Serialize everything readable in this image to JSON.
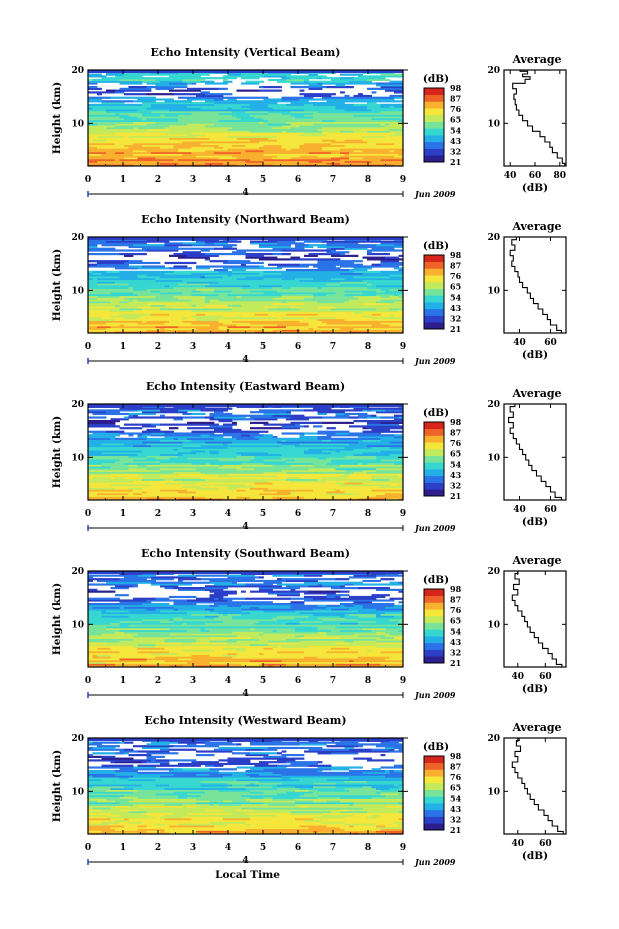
{
  "figure": {
    "xlabel": "Local Time",
    "date_label": "Jun 2009",
    "day_marker": "4",
    "colorbar_unit": "(dB)",
    "colorbar_ticks": [
      "98",
      "87",
      "76",
      "65",
      "54",
      "43",
      "32",
      "21"
    ],
    "colorbar_colors": [
      "#2c1e8c",
      "#2b3fc8",
      "#2a74e8",
      "#22b0e6",
      "#37d7d1",
      "#77e49a",
      "#c3ea5b",
      "#f4e63a",
      "#f9b02f",
      "#f06328",
      "#d6261c"
    ]
  },
  "chart_data": [
    {
      "type": "heatmap",
      "title": "Echo Intensity (Vertical Beam)",
      "ylabel": "Height (km)",
      "x_ticks": [
        0,
        1,
        2,
        3,
        4,
        5,
        6,
        7,
        8,
        9
      ],
      "y_ticks": [
        10,
        20
      ],
      "xlim": [
        0,
        9
      ],
      "ylim": [
        2,
        20
      ],
      "color_range": [
        21,
        98
      ],
      "profile_levels_dB": [
        [
          2,
          85
        ],
        [
          4,
          80
        ],
        [
          6,
          76
        ],
        [
          8,
          70
        ],
        [
          10,
          62
        ],
        [
          12,
          54
        ],
        [
          14,
          44
        ],
        [
          15,
          38
        ],
        [
          16,
          30
        ],
        [
          17,
          34
        ],
        [
          18,
          52
        ],
        [
          19,
          48
        ]
      ],
      "average": {
        "title": "Average",
        "xlabel": "(dB)",
        "x_ticks": [
          40,
          60,
          80
        ],
        "xlim": [
          35,
          85
        ],
        "ylim": [
          2,
          20
        ],
        "profile": [
          [
            2,
            84
          ],
          [
            3,
            82
          ],
          [
            4,
            78
          ],
          [
            5,
            74
          ],
          [
            6,
            72
          ],
          [
            7,
            68
          ],
          [
            8,
            64
          ],
          [
            9,
            58
          ],
          [
            10,
            54
          ],
          [
            11,
            50
          ],
          [
            12,
            47
          ],
          [
            13,
            45
          ],
          [
            14,
            44
          ],
          [
            15,
            43
          ],
          [
            16,
            45
          ],
          [
            17,
            42
          ],
          [
            18,
            52
          ],
          [
            18.5,
            56
          ],
          [
            19,
            50
          ],
          [
            19.5,
            54
          ],
          [
            20,
            48
          ]
        ]
      }
    },
    {
      "type": "heatmap",
      "title": "Echo Intensity (Northward Beam)",
      "ylabel": "Height (km)",
      "x_ticks": [
        0,
        1,
        2,
        3,
        4,
        5,
        6,
        7,
        8,
        9
      ],
      "y_ticks": [
        10,
        20
      ],
      "xlim": [
        0,
        9
      ],
      "ylim": [
        2,
        20
      ],
      "color_range": [
        21,
        98
      ],
      "profile_levels_dB": [
        [
          2,
          80
        ],
        [
          4,
          76
        ],
        [
          6,
          70
        ],
        [
          8,
          64
        ],
        [
          10,
          56
        ],
        [
          12,
          50
        ],
        [
          14,
          42
        ],
        [
          15,
          36
        ],
        [
          16,
          28
        ],
        [
          17,
          34
        ],
        [
          18,
          40
        ],
        [
          19,
          36
        ]
      ],
      "average": {
        "title": "Average",
        "xlabel": "(dB)",
        "x_ticks": [
          40,
          60
        ],
        "xlim": [
          30,
          70
        ],
        "ylim": [
          2,
          20
        ],
        "profile": [
          [
            2,
            67
          ],
          [
            3,
            64
          ],
          [
            4,
            60
          ],
          [
            5,
            58
          ],
          [
            6,
            55
          ],
          [
            7,
            52
          ],
          [
            8,
            49
          ],
          [
            9,
            47
          ],
          [
            10,
            45
          ],
          [
            11,
            42
          ],
          [
            12,
            40
          ],
          [
            13,
            39
          ],
          [
            14,
            37
          ],
          [
            15,
            35
          ],
          [
            16,
            36
          ],
          [
            17,
            34
          ],
          [
            18,
            37
          ],
          [
            19,
            35
          ],
          [
            20,
            38
          ]
        ]
      }
    },
    {
      "type": "heatmap",
      "title": "Echo Intensity (Eastward Beam)",
      "ylabel": "Height (km)",
      "x_ticks": [
        0,
        1,
        2,
        3,
        4,
        5,
        6,
        7,
        8,
        9
      ],
      "y_ticks": [
        10,
        20
      ],
      "xlim": [
        0,
        9
      ],
      "ylim": [
        2,
        20
      ],
      "color_range": [
        21,
        98
      ],
      "profile_levels_dB": [
        [
          2,
          78
        ],
        [
          4,
          74
        ],
        [
          6,
          68
        ],
        [
          8,
          62
        ],
        [
          10,
          55
        ],
        [
          12,
          49
        ],
        [
          14,
          41
        ],
        [
          15,
          35
        ],
        [
          16,
          28
        ],
        [
          17,
          33
        ],
        [
          18,
          38
        ],
        [
          19,
          35
        ]
      ],
      "average": {
        "title": "Average",
        "xlabel": "(dB)",
        "x_ticks": [
          40,
          60
        ],
        "xlim": [
          30,
          70
        ],
        "ylim": [
          2,
          20
        ],
        "profile": [
          [
            2,
            67
          ],
          [
            3,
            63
          ],
          [
            4,
            60
          ],
          [
            5,
            57
          ],
          [
            6,
            54
          ],
          [
            7,
            51
          ],
          [
            8,
            48
          ],
          [
            9,
            46
          ],
          [
            10,
            44
          ],
          [
            11,
            42
          ],
          [
            12,
            40
          ],
          [
            13,
            38
          ],
          [
            14,
            36
          ],
          [
            15,
            34
          ],
          [
            16,
            36
          ],
          [
            17,
            33
          ],
          [
            18,
            36
          ],
          [
            19,
            34
          ],
          [
            20,
            37
          ]
        ]
      }
    },
    {
      "type": "heatmap",
      "title": "Echo Intensity (Southward Beam)",
      "ylabel": "Height (km)",
      "x_ticks": [
        0,
        1,
        2,
        3,
        4,
        5,
        6,
        7,
        8,
        9
      ],
      "y_ticks": [
        10,
        20
      ],
      "xlim": [
        0,
        9
      ],
      "ylim": [
        2,
        20
      ],
      "color_range": [
        21,
        98
      ],
      "profile_levels_dB": [
        [
          2,
          79
        ],
        [
          4,
          75
        ],
        [
          6,
          69
        ],
        [
          8,
          62
        ],
        [
          10,
          56
        ],
        [
          12,
          50
        ],
        [
          14,
          42
        ],
        [
          15,
          36
        ],
        [
          16,
          30
        ],
        [
          17,
          35
        ],
        [
          18,
          42
        ],
        [
          19,
          38
        ]
      ],
      "average": {
        "title": "Average",
        "xlabel": "(dB)",
        "x_ticks": [
          40,
          60
        ],
        "xlim": [
          30,
          75
        ],
        "ylim": [
          2,
          20
        ],
        "profile": [
          [
            2,
            72
          ],
          [
            3,
            68
          ],
          [
            4,
            65
          ],
          [
            5,
            62
          ],
          [
            6,
            58
          ],
          [
            7,
            55
          ],
          [
            8,
            52
          ],
          [
            9,
            49
          ],
          [
            10,
            47
          ],
          [
            11,
            45
          ],
          [
            12,
            43
          ],
          [
            13,
            40
          ],
          [
            14,
            38
          ],
          [
            15,
            36
          ],
          [
            16,
            40
          ],
          [
            17,
            37
          ],
          [
            18,
            41
          ],
          [
            19,
            38
          ],
          [
            20,
            40
          ]
        ]
      }
    },
    {
      "type": "heatmap",
      "title": "Echo Intensity (Westward Beam)",
      "ylabel": "Height (km)",
      "x_ticks": [
        0,
        1,
        2,
        3,
        4,
        5,
        6,
        7,
        8,
        9
      ],
      "y_ticks": [
        10,
        20
      ],
      "xlim": [
        0,
        9
      ],
      "ylim": [
        2,
        20
      ],
      "color_range": [
        21,
        98
      ],
      "profile_levels_dB": [
        [
          2,
          79
        ],
        [
          4,
          75
        ],
        [
          6,
          69
        ],
        [
          8,
          62
        ],
        [
          10,
          56
        ],
        [
          12,
          50
        ],
        [
          14,
          42
        ],
        [
          15,
          36
        ],
        [
          16,
          29
        ],
        [
          17,
          34
        ],
        [
          18,
          40
        ],
        [
          19,
          37
        ]
      ],
      "average": {
        "title": "Average",
        "xlabel": "(dB)",
        "x_ticks": [
          40,
          60
        ],
        "xlim": [
          30,
          75
        ],
        "ylim": [
          2,
          20
        ],
        "profile": [
          [
            2,
            73
          ],
          [
            3,
            69
          ],
          [
            4,
            65
          ],
          [
            5,
            62
          ],
          [
            6,
            59
          ],
          [
            7,
            55
          ],
          [
            8,
            52
          ],
          [
            9,
            49
          ],
          [
            10,
            47
          ],
          [
            11,
            45
          ],
          [
            12,
            43
          ],
          [
            13,
            40
          ],
          [
            14,
            38
          ],
          [
            15,
            36
          ],
          [
            16,
            40
          ],
          [
            17,
            38
          ],
          [
            18,
            42
          ],
          [
            19,
            39
          ],
          [
            20,
            41
          ]
        ]
      }
    }
  ]
}
